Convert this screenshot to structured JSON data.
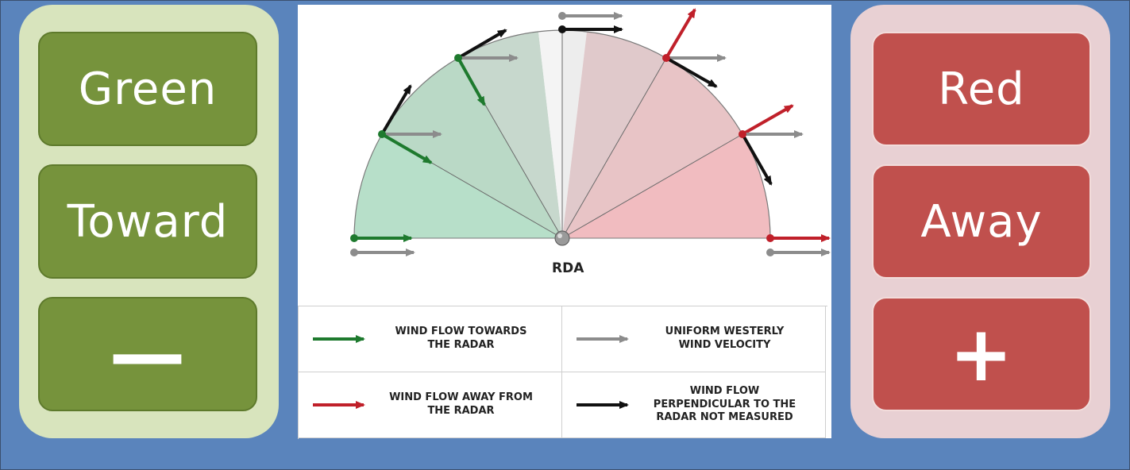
{
  "left_panel": {
    "tiles": [
      {
        "label": "Green"
      },
      {
        "label": "Toward"
      },
      {
        "label": "—"
      }
    ]
  },
  "right_panel": {
    "tiles": [
      {
        "label": "Red"
      },
      {
        "label": "Away"
      },
      {
        "label": "+"
      }
    ]
  },
  "diagram": {
    "center_label": "RDA",
    "colors": {
      "toward": "#1e7a2e",
      "away": "#c0202a",
      "uniform": "#8c8c8c",
      "perpendicular": "#111111"
    },
    "legend": [
      {
        "text": "WIND FLOW TOWARDS\nTHE RADAR",
        "arrow": "toward"
      },
      {
        "text": "UNIFORM WESTERLY\nWIND VELOCITY",
        "arrow": "uniform"
      },
      {
        "text": "WIND FLOW AWAY FROM\nTHE RADAR",
        "arrow": "away"
      },
      {
        "text": "WIND FLOW\nPERPENDICULAR TO THE\nRADAR NOT MEASURED",
        "arrow": "perpendicular"
      }
    ]
  }
}
